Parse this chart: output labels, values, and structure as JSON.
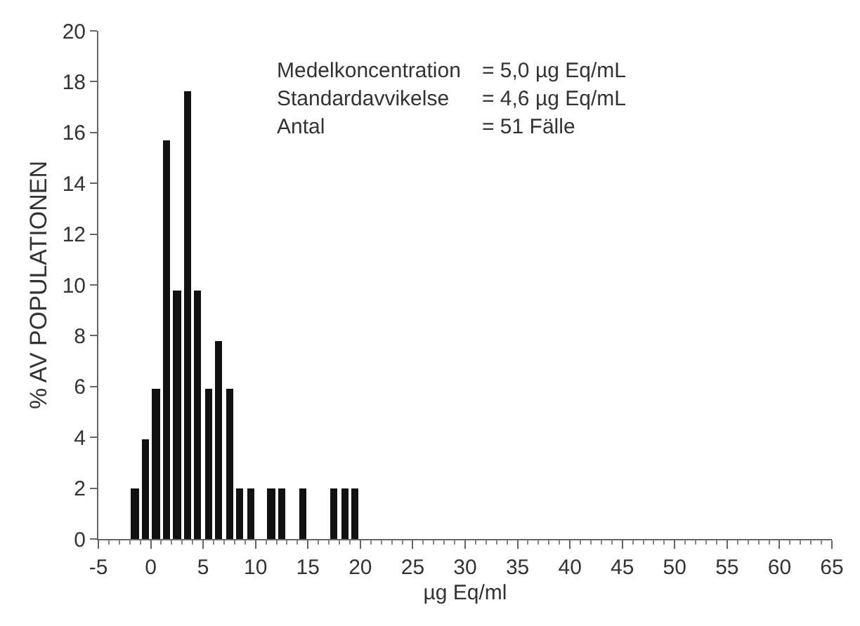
{
  "chart_data": {
    "type": "histogram",
    "xlabel": "µg Eq/ml",
    "ylabel": "% AV POPULATIONEN",
    "bins": [
      -2,
      -1,
      0,
      1,
      2,
      3,
      4,
      5,
      6,
      7,
      8,
      9,
      10,
      11,
      12,
      13,
      14,
      15,
      16,
      17,
      18,
      19,
      20
    ],
    "values": [
      2,
      3.9,
      5.9,
      15.7,
      9.8,
      17.6,
      9.8,
      5.9,
      7.8,
      5.9,
      2,
      2,
      0,
      2,
      2,
      0,
      2,
      0,
      0,
      2,
      2,
      2
    ],
    "color": "#111111",
    "xlim": [
      -5,
      65
    ],
    "xticks": [
      -5,
      0,
      5,
      10,
      15,
      20,
      25,
      30,
      35,
      40,
      45,
      50,
      55,
      60,
      65
    ],
    "ylim": [
      0,
      20
    ],
    "yticks": [
      0,
      2,
      4,
      6,
      8,
      10,
      12,
      14,
      16,
      18,
      20
    ],
    "annotations": [
      "Medelkoncentration",
      "= 5,0 µg Eq/mL",
      "Standardavvikelse",
      "= 4,6 µg Eq/mL",
      "Antal",
      "= 51 Fälle"
    ]
  }
}
